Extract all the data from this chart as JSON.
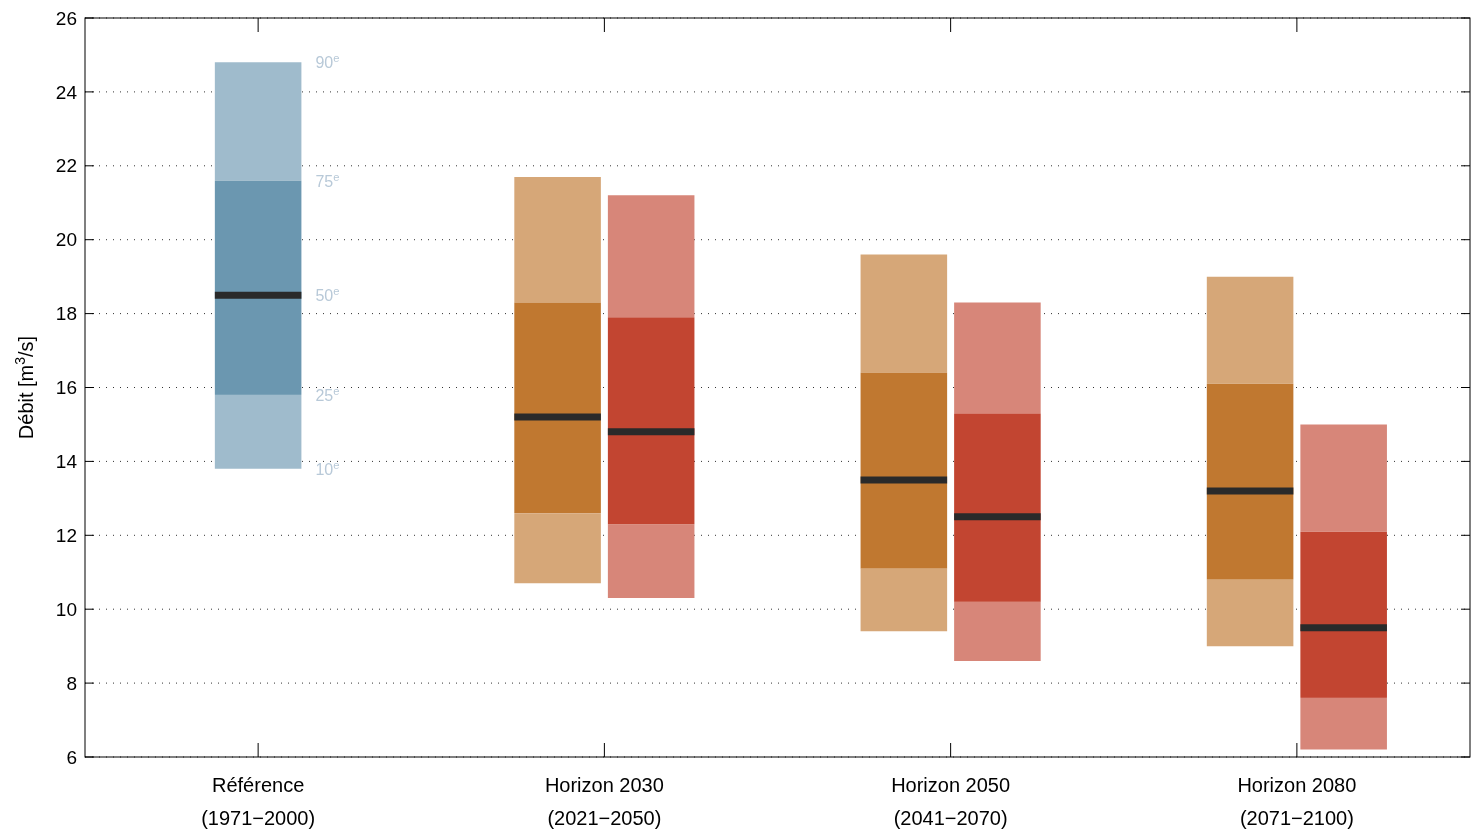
{
  "chart_data": {
    "type": "box",
    "ylabel": "Débit [m$^{3}$/s]",
    "categories": [
      "Référence\n(1971−2000)",
      "Horizon 2030\n(2021−2050)",
      "Horizon 2050\n(2041−2070)",
      "Horizon 2080\n(2071−2100)"
    ],
    "ylim": [
      6,
      26
    ],
    "yticks": [
      6,
      8,
      10,
      12,
      14,
      16,
      18,
      20,
      22,
      24,
      26
    ],
    "grid": "y",
    "series": [
      {
        "color": "#6b97b0",
        "boxes": [
          {
            "low": 13.8,
            "q1": 15.8,
            "median": 18.5,
            "q3": 21.6,
            "high": 24.8
          },
          null,
          null,
          null
        ]
      },
      {
        "color": "#c07830",
        "boxes": [
          null,
          {
            "low": 10.7,
            "q1": 12.6,
            "median": 15.2,
            "q3": 18.3,
            "high": 21.7
          },
          {
            "low": 9.4,
            "q1": 11.1,
            "median": 13.5,
            "q3": 16.4,
            "high": 19.6
          },
          {
            "low": 9.0,
            "q1": 10.8,
            "median": 13.2,
            "q3": 16.1,
            "high": 19.0
          }
        ]
      },
      {
        "color": "#c24531",
        "boxes": [
          null,
          {
            "low": 10.3,
            "q1": 12.3,
            "median": 14.8,
            "q3": 17.9,
            "high": 21.2
          },
          {
            "low": 8.6,
            "q1": 10.2,
            "median": 12.5,
            "q3": 15.3,
            "high": 18.3
          },
          {
            "low": 6.2,
            "q1": 7.6,
            "median": 9.5,
            "q3": 12.1,
            "high": 15.0
          }
        ]
      }
    ],
    "annotations": [
      "90$^{e}$",
      "75$^{e}$",
      "50$^{e}$",
      "25$^{e}$",
      "10$^{e}$"
    ]
  }
}
